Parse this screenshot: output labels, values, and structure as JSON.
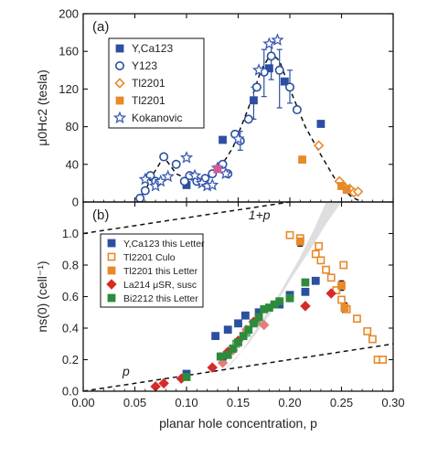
{
  "chart_data": [
    {
      "id": "a",
      "type": "scatter",
      "panel_label": "(a)",
      "ylabel": "μ0Hc2 (tesla)",
      "xlim": [
        0,
        0.3
      ],
      "ylim": [
        0,
        200
      ],
      "yticks": [
        "0",
        "40",
        "80",
        "120",
        "160",
        "200"
      ],
      "ytick_values": [
        0,
        40,
        80,
        120,
        160,
        200
      ],
      "xtick_values": [
        0,
        0.05,
        0.1,
        0.15,
        0.2,
        0.25,
        0.3
      ],
      "legend": [
        {
          "label": "Y,Ca123",
          "marker": "square",
          "color": "#2c4fa0",
          "filled": true
        },
        {
          "label": "Y123",
          "marker": "circle",
          "color": "#2c4fa0",
          "filled": false
        },
        {
          "label": "Tl2201",
          "marker": "diamond",
          "color": "#e8892a",
          "filled": false
        },
        {
          "label": "Tl2201",
          "marker": "square",
          "color": "#e8892a",
          "filled": true
        },
        {
          "label": "Kokanovic",
          "marker": "star",
          "color": "#3a5bb0",
          "filled": false
        }
      ],
      "series": [
        {
          "name": "Y,Ca123",
          "marker": "square",
          "color": "#2c4fa0",
          "filled": true,
          "points": [
            [
              0.1,
              18
            ],
            [
              0.135,
              66
            ],
            [
              0.165,
              108
            ],
            [
              0.18,
              142
            ],
            [
              0.195,
              128
            ],
            [
              0.23,
              83
            ]
          ]
        },
        {
          "name": "Y123",
          "marker": "circle",
          "color": "#2c4fa0",
          "filled": false,
          "points": [
            [
              0.055,
              4
            ],
            [
              0.06,
              12
            ],
            [
              0.065,
              28
            ],
            [
              0.07,
              22
            ],
            [
              0.078,
              48
            ],
            [
              0.09,
              40
            ],
            [
              0.098,
              22
            ],
            [
              0.103,
              28
            ],
            [
              0.11,
              22
            ],
            [
              0.118,
              25
            ],
            [
              0.125,
              30
            ],
            [
              0.135,
              40
            ],
            [
              0.14,
              30
            ],
            [
              0.147,
              72
            ],
            [
              0.152,
              65
            ],
            [
              0.16,
              88
            ],
            [
              0.168,
              122
            ],
            [
              0.175,
              138
            ],
            [
              0.182,
              155
            ],
            [
              0.19,
              140
            ],
            [
              0.2,
              122
            ],
            [
              0.207,
              98
            ]
          ]
        },
        {
          "name": "Tl2201",
          "marker": "diamond",
          "color": "#e8892a",
          "filled": false,
          "points": [
            [
              0.228,
              60
            ],
            [
              0.248,
              22
            ],
            [
              0.253,
              16
            ],
            [
              0.258,
              14
            ],
            [
              0.262,
              10
            ],
            [
              0.266,
              11
            ]
          ]
        },
        {
          "name": "Tl2201",
          "marker": "square",
          "color": "#e8892a",
          "filled": true,
          "points": [
            [
              0.212,
              45
            ],
            [
              0.25,
              17
            ],
            [
              0.255,
              13
            ]
          ]
        },
        {
          "name": "Kokanovic",
          "marker": "star",
          "color": "#3a5bb0",
          "filled": false,
          "points": [
            [
              0.06,
              24
            ],
            [
              0.07,
              17
            ],
            [
              0.075,
              22
            ],
            [
              0.082,
              27
            ],
            [
              0.1,
              47
            ],
            [
              0.108,
              28
            ],
            [
              0.115,
              20
            ],
            [
              0.12,
              17
            ],
            [
              0.125,
              18
            ],
            [
              0.13,
              36
            ],
            [
              0.138,
              30
            ],
            [
              0.15,
              67
            ],
            [
              0.17,
              140
            ],
            [
              0.18,
              168
            ],
            [
              0.188,
              172
            ]
          ]
        }
      ],
      "special_points": [
        {
          "marker": "square",
          "color": "#d45a9a",
          "x": 0.13,
          "y": 35
        }
      ],
      "error_bars": [
        {
          "x": 0.165,
          "y": 108,
          "lo": 88,
          "hi": 122
        },
        {
          "x": 0.175,
          "y": 138,
          "lo": 112,
          "hi": 162
        },
        {
          "x": 0.182,
          "y": 155,
          "lo": 130,
          "hi": 170
        },
        {
          "x": 0.19,
          "y": 140,
          "lo": 100,
          "hi": 162
        },
        {
          "x": 0.2,
          "y": 122,
          "lo": 105,
          "hi": 140
        },
        {
          "x": 0.152,
          "y": 65,
          "lo": 55,
          "hi": 75
        }
      ],
      "guide_line": [
        [
          0.052,
          0
        ],
        [
          0.06,
          12
        ],
        [
          0.068,
          30
        ],
        [
          0.078,
          48
        ],
        [
          0.09,
          30
        ],
        [
          0.1,
          25
        ],
        [
          0.115,
          22
        ],
        [
          0.13,
          32
        ],
        [
          0.145,
          58
        ],
        [
          0.16,
          100
        ],
        [
          0.172,
          140
        ],
        [
          0.182,
          158
        ],
        [
          0.19,
          150
        ],
        [
          0.2,
          120
        ],
        [
          0.215,
          80
        ],
        [
          0.23,
          50
        ],
        [
          0.245,
          22
        ],
        [
          0.26,
          5
        ],
        [
          0.27,
          0
        ]
      ]
    },
    {
      "id": "b",
      "type": "scatter",
      "panel_label": "(b)",
      "ylabel": "ns(0) (cell⁻¹)",
      "xlabel": "planar hole concentration, p",
      "xlim": [
        0,
        0.3
      ],
      "ylim": [
        0,
        1.2
      ],
      "xticks": [
        "0.00",
        "0.05",
        "0.10",
        "0.15",
        "0.20",
        "0.25",
        "0.30"
      ],
      "xtick_values": [
        0,
        0.05,
        0.1,
        0.15,
        0.2,
        0.25,
        0.3
      ],
      "yticks": [
        "0.0",
        "0.2",
        "0.4",
        "0.6",
        "0.8",
        "1.0"
      ],
      "ytick_values": [
        0.0,
        0.2,
        0.4,
        0.6,
        0.8,
        1.0
      ],
      "annotations": [
        {
          "text": "1+p",
          "x": 0.16,
          "y": 1.09
        },
        {
          "text": "p",
          "x": 0.038,
          "y": 0.1
        }
      ],
      "lines": [
        {
          "name": "1+p",
          "points": [
            [
              0,
              1.0
            ],
            [
              0.3,
              1.3
            ]
          ],
          "style": "dashed"
        },
        {
          "name": "p",
          "points": [
            [
              0,
              0
            ],
            [
              0.3,
              0.3
            ]
          ],
          "style": "dashed"
        }
      ],
      "band": {
        "lower": [
          [
            0.13,
            0.08
          ],
          [
            0.15,
            0.22
          ],
          [
            0.17,
            0.42
          ],
          [
            0.19,
            0.62
          ],
          [
            0.21,
            0.85
          ],
          [
            0.225,
            1.05
          ],
          [
            0.235,
            1.2
          ]
        ],
        "upper": [
          [
            0.27,
            1.2
          ],
          [
            0.25,
            1.2
          ],
          [
            0.235,
            1.06
          ],
          [
            0.22,
            0.9
          ],
          [
            0.2,
            0.7
          ],
          [
            0.18,
            0.48
          ],
          [
            0.16,
            0.3
          ],
          [
            0.14,
            0.16
          ],
          [
            0.13,
            0.08
          ]
        ]
      },
      "legend": [
        {
          "label": "Y,Ca123 this Letter",
          "marker": "square",
          "color": "#2c4fa0",
          "filled": true
        },
        {
          "label": "Tl2201 Culo",
          "marker": "square",
          "color": "#e8892a",
          "filled": false
        },
        {
          "label": "Tl2201 this Letter",
          "marker": "square",
          "color": "#e8892a",
          "filled": true
        },
        {
          "label": "La214 μSR, susc",
          "marker": "diamond",
          "color": "#d62b2b",
          "filled": true
        },
        {
          "label": "Bi2212 this Letter",
          "marker": "square",
          "color": "#2e8b3d",
          "filled": true
        }
      ],
      "series": [
        {
          "name": "Y,Ca123 this Letter",
          "marker": "square",
          "color": "#2c4fa0",
          "filled": true,
          "points": [
            [
              0.1,
              0.11
            ],
            [
              0.128,
              0.35
            ],
            [
              0.135,
              0.22
            ],
            [
              0.14,
              0.39
            ],
            [
              0.15,
              0.43
            ],
            [
              0.157,
              0.48
            ],
            [
              0.17,
              0.5
            ],
            [
              0.19,
              0.55
            ],
            [
              0.2,
              0.61
            ],
            [
              0.215,
              0.63
            ],
            [
              0.225,
              0.7
            ]
          ]
        },
        {
          "name": "Tl2201 Culo",
          "marker": "square",
          "color": "#e8892a",
          "filled": false,
          "points": [
            [
              0.2,
              0.99
            ],
            [
              0.21,
              0.97
            ],
            [
              0.225,
              0.87
            ],
            [
              0.228,
              0.92
            ],
            [
              0.23,
              0.83
            ],
            [
              0.235,
              0.77
            ],
            [
              0.24,
              0.72
            ],
            [
              0.245,
              0.64
            ],
            [
              0.25,
              0.58
            ],
            [
              0.252,
              0.8
            ],
            [
              0.255,
              0.52
            ],
            [
              0.265,
              0.46
            ],
            [
              0.275,
              0.38
            ],
            [
              0.28,
              0.33
            ],
            [
              0.285,
              0.2
            ],
            [
              0.29,
              0.2
            ]
          ]
        },
        {
          "name": "Tl2201 this Letter",
          "marker": "square",
          "color": "#e8892a",
          "filled": true,
          "points": [
            [
              0.21,
              0.95
            ],
            [
              0.25,
              0.67
            ],
            [
              0.253,
              0.53
            ]
          ]
        },
        {
          "name": "La214 μSR, susc",
          "marker": "diamond",
          "color": "#d62b2b",
          "filled": true,
          "points": [
            [
              0.07,
              0.03
            ],
            [
              0.078,
              0.05
            ],
            [
              0.095,
              0.08
            ],
            [
              0.125,
              0.15
            ],
            [
              0.14,
              0.25
            ],
            [
              0.15,
              0.32
            ],
            [
              0.165,
              0.44
            ],
            [
              0.215,
              0.54
            ],
            [
              0.24,
              0.62
            ]
          ]
        },
        {
          "name": "Bi2212 this Letter",
          "marker": "square",
          "color": "#2e8b3d",
          "filled": true,
          "points": [
            [
              0.1,
              0.09
            ],
            [
              0.133,
              0.22
            ],
            [
              0.14,
              0.23
            ],
            [
              0.145,
              0.27
            ],
            [
              0.15,
              0.31
            ],
            [
              0.155,
              0.35
            ],
            [
              0.16,
              0.39
            ],
            [
              0.165,
              0.43
            ],
            [
              0.17,
              0.47
            ],
            [
              0.175,
              0.52
            ],
            [
              0.18,
              0.53
            ],
            [
              0.185,
              0.55
            ],
            [
              0.19,
              0.57
            ],
            [
              0.2,
              0.59
            ],
            [
              0.215,
              0.69
            ]
          ]
        }
      ],
      "faded_points": [
        {
          "marker": "square",
          "color": "#6ab27a",
          "points": [
            [
              0.148,
              0.3
            ],
            [
              0.158,
              0.37
            ],
            [
              0.168,
              0.44
            ]
          ]
        },
        {
          "marker": "diamond",
          "color": "#e87a7a",
          "points": [
            [
              0.135,
              0.18
            ],
            [
              0.145,
              0.26
            ],
            [
              0.158,
              0.39
            ],
            [
              0.175,
              0.42
            ]
          ]
        }
      ],
      "error_bars": [
        {
          "x": 0.21,
          "y": 0.95,
          "lo": 0.92,
          "hi": 0.98
        },
        {
          "x": 0.25,
          "y": 0.67,
          "lo": 0.64,
          "hi": 0.7
        },
        {
          "x": 0.253,
          "y": 0.53,
          "lo": 0.5,
          "hi": 0.56
        }
      ]
    }
  ]
}
